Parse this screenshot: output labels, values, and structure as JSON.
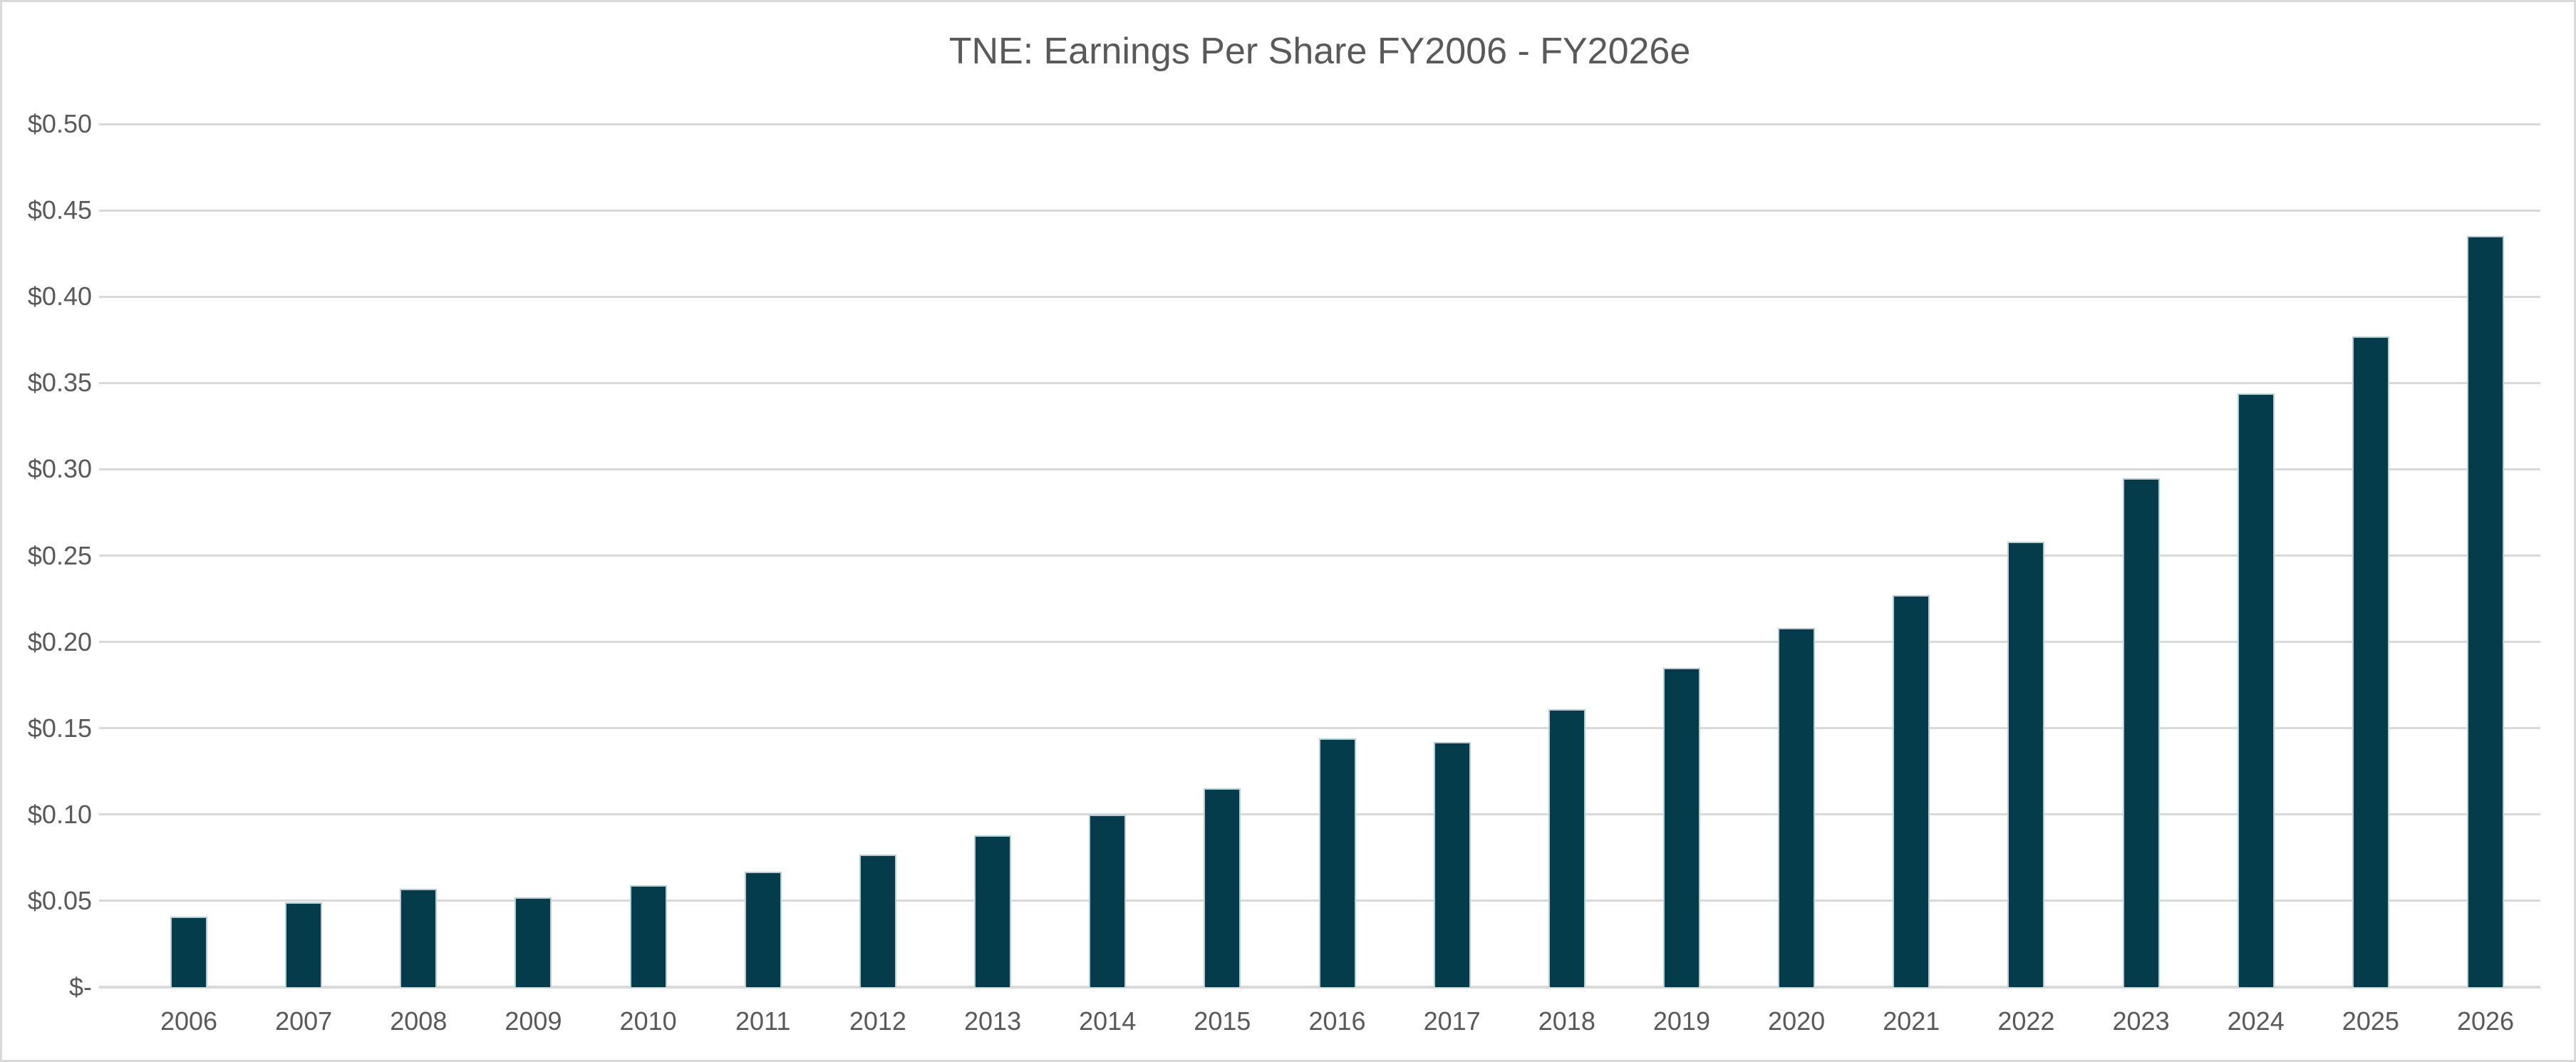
{
  "title": "TNE: Earnings Per Share FY2006 - FY2026e",
  "colors": {
    "background": "#ffffff",
    "chart_border": "#d9d9d9",
    "gridline": "#d9d9d9",
    "axis_text": "#595959",
    "title_text": "#595959",
    "bar_fill": "#053c4b",
    "bar_border": "#b8cdd3"
  },
  "chart_data": {
    "type": "bar",
    "title": "TNE: Earnings Per Share FY2006 - FY2026e",
    "series_name": "Earnings Per Share",
    "categories": [
      "2006",
      "2007",
      "2008",
      "2009",
      "2010",
      "2011",
      "2012",
      "2013",
      "2014",
      "2015",
      "2016",
      "2017",
      "2018",
      "2019",
      "2020",
      "2021",
      "2022",
      "2023",
      "2024",
      "2025",
      "2026"
    ],
    "values": [
      0.041,
      0.049,
      0.057,
      0.052,
      0.059,
      0.067,
      0.077,
      0.088,
      0.1,
      0.115,
      0.144,
      0.142,
      0.161,
      0.185,
      0.208,
      0.227,
      0.258,
      0.295,
      0.344,
      0.377,
      0.435
    ],
    "xlabel": "",
    "ylabel": "",
    "ylim": [
      0,
      0.5
    ],
    "ytick_step": 0.05,
    "ytick_labels_top_to_bottom": [
      "$0.50",
      "$0.45",
      "$0.40",
      "$0.35",
      "$0.30",
      "$0.25",
      "$0.20",
      "$0.15",
      "$0.10",
      "$0.05",
      "$-"
    ],
    "value_format": "$0.00",
    "grid": true,
    "legend_position": "none"
  }
}
